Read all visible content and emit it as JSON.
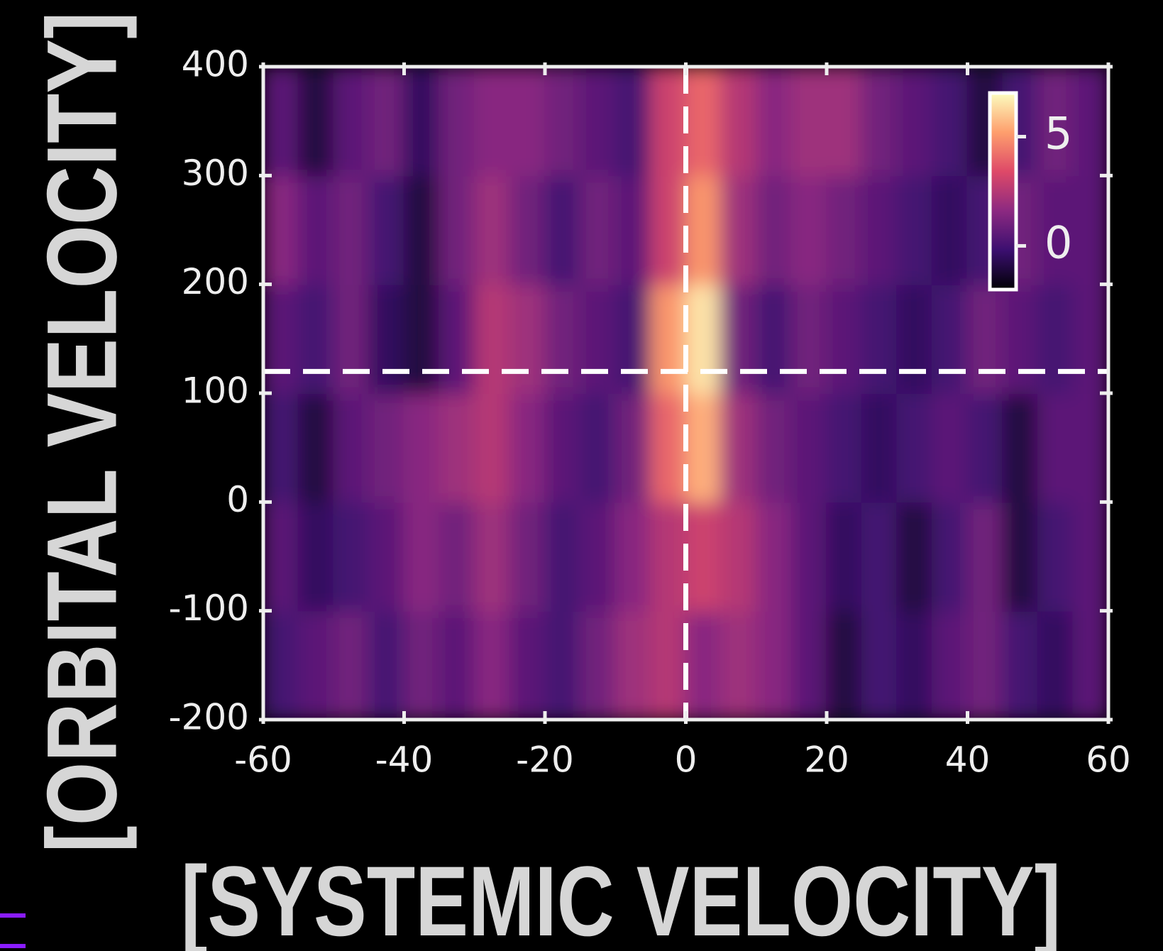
{
  "chart_data": {
    "type": "heatmap",
    "x_label": "[SYSTEMIC VELOCITY]",
    "y_label": "[ORBITAL VELOCITY]",
    "x": [
      -57.5,
      -52.5,
      -47.5,
      -42.5,
      -37.5,
      -32.5,
      -27.5,
      -22.5,
      -17.5,
      -12.5,
      -7.5,
      -2.5,
      2.5,
      7.5,
      12.5,
      17.5,
      22.5,
      27.5,
      32.5,
      37.5,
      42.5,
      47.5,
      52.5,
      57.5
    ],
    "y": [
      -150,
      -50,
      50,
      150,
      250,
      350
    ],
    "z": [
      [
        0,
        0.5,
        1,
        0,
        1,
        0.5,
        1.5,
        0.5,
        0,
        1,
        2,
        2.5,
        1.5,
        2,
        1.5,
        0.5,
        -1,
        0,
        -0.5,
        0.5,
        1,
        0,
        -0.5,
        0.5
      ],
      [
        0.5,
        -0.5,
        0,
        0.5,
        1.5,
        1,
        2,
        1,
        0,
        0.5,
        1.5,
        2.5,
        3,
        2.5,
        1.5,
        0.5,
        -0.5,
        0,
        -1,
        0,
        1,
        -1,
        0,
        0.5
      ],
      [
        0,
        -1,
        0.5,
        1,
        1.5,
        2,
        2.5,
        1.5,
        0.5,
        0,
        1,
        4,
        5.5,
        2,
        1,
        0.5,
        0,
        -0.5,
        0,
        0.5,
        0,
        -1,
        0.5,
        0.5
      ],
      [
        0.5,
        0,
        1,
        -0.5,
        -1,
        0.5,
        2.5,
        2,
        1,
        0.5,
        0,
        5,
        6.5,
        1,
        0,
        1,
        0.5,
        0,
        -0.5,
        0,
        1,
        0.5,
        0,
        0.5
      ],
      [
        1.5,
        0.5,
        1,
        0,
        -1,
        1,
        2,
        1,
        0,
        1,
        0.5,
        3,
        5,
        2,
        1,
        1.5,
        1,
        0.5,
        0,
        -0.5,
        0,
        1,
        0.5,
        0.5
      ],
      [
        0.5,
        -1,
        0.5,
        1,
        -0.5,
        1,
        1.5,
        1.5,
        1,
        0.5,
        0,
        3,
        4,
        2.5,
        1.5,
        2,
        2,
        1,
        0.5,
        0,
        -1,
        0,
        1,
        0.5
      ]
    ],
    "xlim": [
      -60,
      60
    ],
    "xticks": [
      -60,
      -40,
      -20,
      0,
      20,
      40,
      60
    ],
    "ylim": [
      -200,
      400
    ],
    "yticks": [
      -200,
      -100,
      0,
      100,
      200,
      300,
      400
    ],
    "zlim": [
      -2,
      7
    ],
    "colorbar_ticks": [
      0,
      5
    ],
    "colormap": [
      "#000004",
      "#3b0f70",
      "#8c2981",
      "#de4968",
      "#fe9f6d",
      "#fcfdbf"
    ],
    "reference_lines": {
      "x": 0,
      "y": 120
    }
  }
}
